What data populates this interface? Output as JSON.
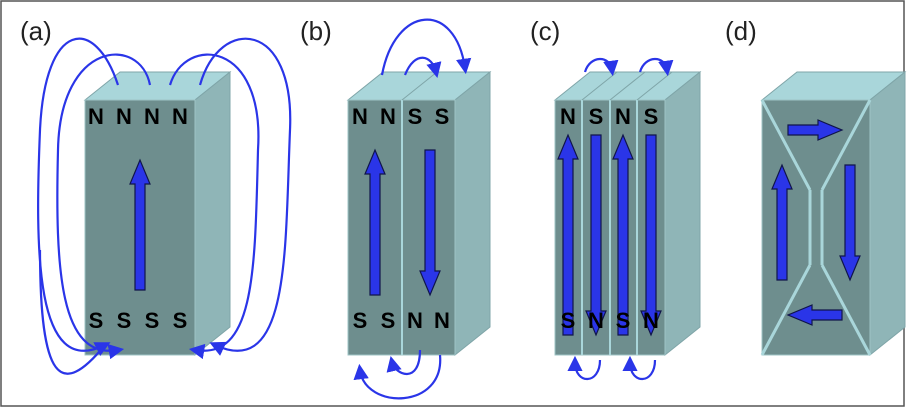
{
  "panels": [
    {
      "label": "(a)",
      "top_poles": [
        "N",
        "N",
        "N",
        "N"
      ],
      "bottom_poles": [
        "S",
        "S",
        "S",
        "S"
      ]
    },
    {
      "label": "(b)",
      "top_poles": [
        "N",
        "N",
        "S",
        "S"
      ],
      "bottom_poles": [
        "S",
        "S",
        "N",
        "N"
      ]
    },
    {
      "label": "(c)",
      "top_poles": [
        "N",
        "S",
        "N",
        "S"
      ],
      "bottom_poles": [
        "S",
        "N",
        "S",
        "N"
      ]
    },
    {
      "label": "(d)"
    }
  ]
}
